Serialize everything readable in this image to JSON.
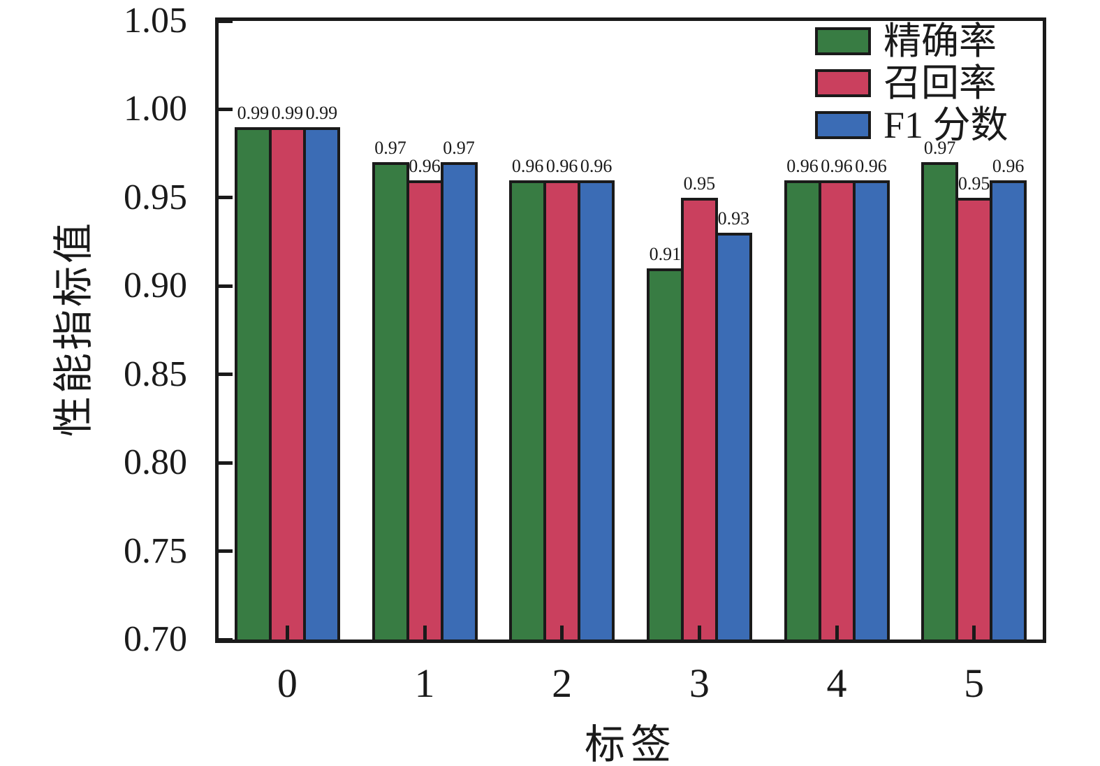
{
  "figure": {
    "background_color": "#ffffff",
    "frame_color": "#1a1a1a",
    "text_color": "#1a1a1a"
  },
  "chart_data": {
    "type": "bar",
    "title": "",
    "xlabel": "标签",
    "ylabel": "性能指标值",
    "categories": [
      "0",
      "1",
      "2",
      "3",
      "4",
      "5"
    ],
    "series": [
      {
        "name": "精确率",
        "color": "#387C43",
        "values": [
          0.99,
          0.97,
          0.96,
          0.91,
          0.96,
          0.97
        ]
      },
      {
        "name": "召回率",
        "color": "#CA405E",
        "values": [
          0.99,
          0.96,
          0.96,
          0.95,
          0.96,
          0.95
        ]
      },
      {
        "name": "F1 分数",
        "color": "#3B6CB5",
        "values": [
          0.99,
          0.97,
          0.96,
          0.93,
          0.96,
          0.96
        ]
      }
    ],
    "yticks": [
      "0.70",
      "0.75",
      "0.80",
      "0.85",
      "0.90",
      "0.95",
      "1.00",
      "1.05"
    ],
    "ylim": [
      0.7,
      1.05
    ],
    "ytick_step": 0.05,
    "bar_edge_color": "#1a1a1a",
    "value_labels_shown": true,
    "grid": false,
    "legend_position": "top-right"
  }
}
